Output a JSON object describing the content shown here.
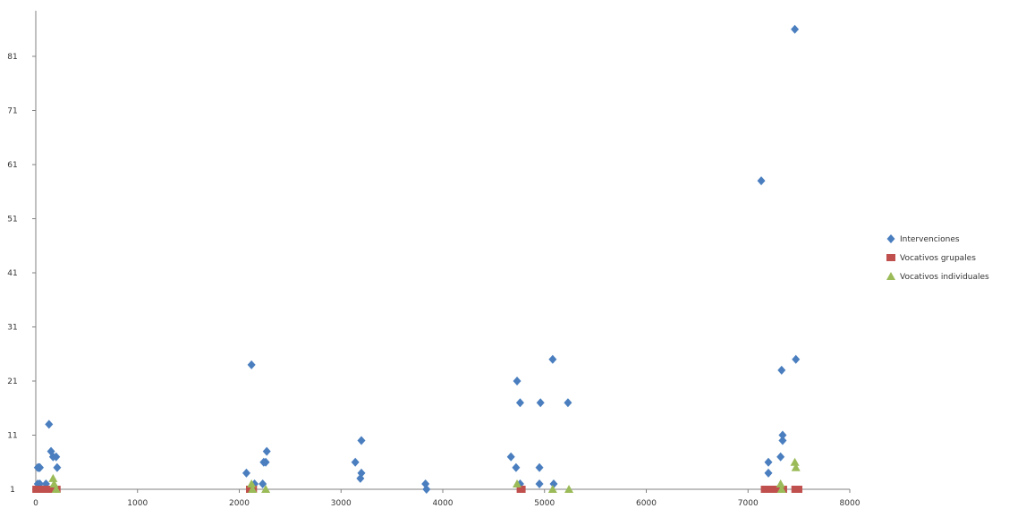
{
  "chart_data": {
    "type": "scatter",
    "xlim": [
      0,
      8000
    ],
    "ylim": [
      1,
      91
    ],
    "x_ticks": [
      "0",
      "1000",
      "2000",
      "3000",
      "4000",
      "5000",
      "6000",
      "7000",
      "8000"
    ],
    "y_ticks": [
      "1",
      "11",
      "21",
      "31",
      "41",
      "51",
      "61",
      "71",
      "81"
    ],
    "grid": false,
    "legend_position": "right",
    "series": [
      {
        "name": "Intervenciones",
        "color": "#4a7ebf",
        "marker": "diamond",
        "points": [
          [
            20,
            4
          ],
          [
            30,
            4
          ],
          [
            40,
            4
          ],
          [
            20,
            1
          ],
          [
            40,
            1
          ],
          [
            130,
            12
          ],
          [
            150,
            7
          ],
          [
            170,
            6
          ],
          [
            200,
            6
          ],
          [
            210,
            4
          ],
          [
            100,
            1
          ],
          [
            2070,
            3
          ],
          [
            2120,
            23
          ],
          [
            2150,
            1
          ],
          [
            2230,
            1
          ],
          [
            2240,
            5
          ],
          [
            2260,
            5
          ],
          [
            2270,
            7
          ],
          [
            3140,
            5
          ],
          [
            3190,
            2
          ],
          [
            3200,
            3
          ],
          [
            3200,
            9
          ],
          [
            3830,
            1
          ],
          [
            3840,
            0
          ],
          [
            4670,
            6
          ],
          [
            4720,
            4
          ],
          [
            4730,
            20
          ],
          [
            4760,
            16
          ],
          [
            4760,
            1
          ],
          [
            4950,
            4
          ],
          [
            4950,
            1
          ],
          [
            4960,
            16
          ],
          [
            5080,
            24
          ],
          [
            5090,
            1
          ],
          [
            5230,
            16
          ],
          [
            7130,
            57
          ],
          [
            7200,
            5
          ],
          [
            7200,
            3
          ],
          [
            7330,
            22
          ],
          [
            7320,
            6
          ],
          [
            7340,
            10
          ],
          [
            7340,
            9
          ],
          [
            7470,
            24
          ],
          [
            7460,
            85
          ]
        ]
      },
      {
        "name": "Vocativos grupales",
        "color": "#c0504d",
        "marker": "square",
        "points": [
          [
            10,
            0
          ],
          [
            40,
            0
          ],
          [
            60,
            0
          ],
          [
            90,
            0
          ],
          [
            120,
            0
          ],
          [
            170,
            0
          ],
          [
            200,
            0
          ],
          [
            2110,
            0
          ],
          [
            2130,
            0
          ],
          [
            4770,
            0
          ],
          [
            7170,
            0
          ],
          [
            7210,
            0
          ],
          [
            7290,
            0
          ],
          [
            7340,
            0
          ],
          [
            7470,
            0
          ],
          [
            7490,
            0
          ]
        ]
      },
      {
        "name": "Vocativos individuales",
        "color": "#9bbb59",
        "marker": "triangle",
        "points": [
          [
            170,
            2
          ],
          [
            180,
            1
          ],
          [
            200,
            0
          ],
          [
            2120,
            1
          ],
          [
            2130,
            0
          ],
          [
            2260,
            0
          ],
          [
            4730,
            1
          ],
          [
            5080,
            0
          ],
          [
            5240,
            0
          ],
          [
            7320,
            1
          ],
          [
            7330,
            0
          ],
          [
            7460,
            5
          ],
          [
            7470,
            4
          ]
        ]
      }
    ]
  }
}
